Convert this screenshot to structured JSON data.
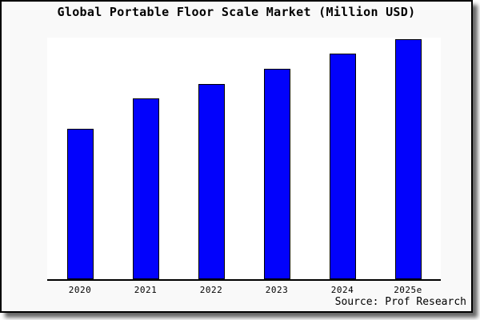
{
  "chart_data": {
    "type": "bar",
    "title": "Global Portable Floor Scale Market (Million USD)",
    "categories": [
      "2020",
      "2021",
      "2022",
      "2023",
      "2024",
      "2025e"
    ],
    "values": [
      100,
      120,
      130,
      140,
      150,
      160
    ],
    "values_note": "no y-axis tick labels visible; values are relative estimates from bar heights with 2020 = 100",
    "xlabel": "",
    "ylabel": "",
    "ylim": [
      0,
      162
    ],
    "grid": false,
    "legend": null,
    "bar_color": "#0202fc",
    "bar_border_color": "#000000",
    "source": "Source: Prof Research"
  },
  "colors": {
    "card_background": "#f9f9f9",
    "plot_background": "#ffffff",
    "card_border": "#000000",
    "axis": "#000000",
    "text": "#000000"
  }
}
